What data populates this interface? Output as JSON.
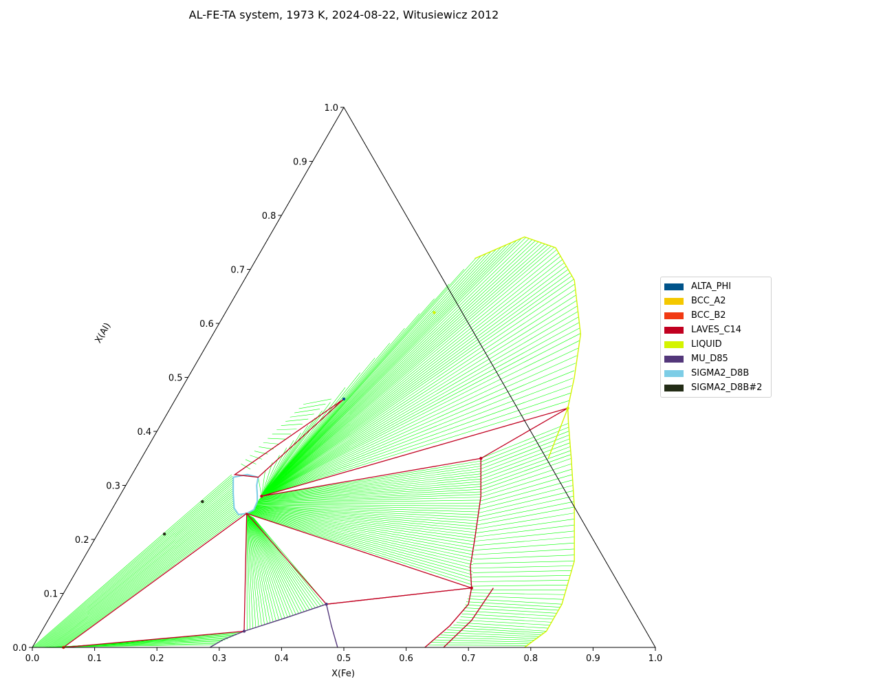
{
  "chart_data": {
    "type": "ternary",
    "title": "AL-FE-TA system, 1973 K, 2024-08-22, Witusiewicz 2012",
    "xlabel": "X(Fe)",
    "ylabel": "X(Al)",
    "xlim": [
      0,
      1
    ],
    "ylim": [
      0,
      1
    ],
    "x_ticks": [
      "0.0",
      "0.1",
      "0.2",
      "0.3",
      "0.4",
      "0.5",
      "0.6",
      "0.7",
      "0.8",
      "0.9",
      "1.0"
    ],
    "y_ticks": [
      "0.0",
      "0.1",
      "0.2",
      "0.3",
      "0.4",
      "0.5",
      "0.6",
      "0.7",
      "0.8",
      "0.9",
      "1.0"
    ],
    "tieline_color": "#00ff00",
    "legend": [
      {
        "name": "ALTA_PHI",
        "color": "#00538a"
      },
      {
        "name": "BCC_A2",
        "color": "#f4c800"
      },
      {
        "name": "BCC_B2",
        "color": "#f13a13"
      },
      {
        "name": "LAVES_C14",
        "color": "#c10020"
      },
      {
        "name": "LIQUID",
        "color": "#d4f400"
      },
      {
        "name": "MU_D85",
        "color": "#53377a"
      },
      {
        "name": "SIGMA2_D8B",
        "color": "#7dcde6"
      },
      {
        "name": "SIGMA2_D8B#2",
        "color": "#232c16"
      }
    ],
    "phase_boundaries": [
      {
        "phase": "LIQUID",
        "color": "#d4f400",
        "points": [
          [
            0.35,
            0.72
          ],
          [
            0.41,
            0.76
          ],
          [
            0.47,
            0.74
          ],
          [
            0.53,
            0.68
          ],
          [
            0.59,
            0.58
          ],
          [
            0.62,
            0.5
          ],
          [
            0.638,
            0.443
          ],
          [
            0.653,
            0.415
          ],
          [
            0.69,
            0.35
          ],
          [
            0.74,
            0.26
          ],
          [
            0.79,
            0.16
          ],
          [
            0.81,
            0.08
          ],
          [
            0.81,
            0.03
          ],
          [
            0.79,
            0.0
          ]
        ]
      },
      {
        "phase": "LIQUID",
        "color": "#d4f400",
        "points": [
          [
            0.638,
            0.443
          ],
          [
            0.645,
            0.4
          ],
          [
            0.653,
            0.35
          ]
        ]
      },
      {
        "phase": "LAVES_C14",
        "color": "#c10020",
        "points": [
          [
            0.545,
            0.35
          ],
          [
            0.58,
            0.28
          ],
          [
            0.61,
            0.2
          ],
          [
            0.628,
            0.15
          ],
          [
            0.65,
            0.11
          ]
        ]
      },
      {
        "phase": "LAVES_C14",
        "color": "#c10020",
        "points": [
          [
            0.65,
            0.11
          ],
          [
            0.66,
            0.08
          ],
          [
            0.65,
            0.04
          ],
          [
            0.63,
            0.0
          ]
        ]
      },
      {
        "phase": "LAVES_C14",
        "color": "#c10020",
        "points": [
          [
            0.685,
            0.11
          ],
          [
            0.68,
            0.05
          ],
          [
            0.66,
            0.0
          ]
        ]
      },
      {
        "phase": "MU_D85",
        "color": "#53377a",
        "points": [
          [
            0.285,
            0.0
          ],
          [
            0.3,
            0.015
          ],
          [
            0.325,
            0.03
          ],
          [
            0.38,
            0.055
          ],
          [
            0.432,
            0.08
          ],
          [
            0.46,
            0.04
          ],
          [
            0.49,
            0.0
          ]
        ]
      },
      {
        "phase": "SIGMA2_D8B",
        "color": "#7dcde6",
        "points": [
          [
            0.165,
            0.315
          ],
          [
            0.185,
            0.32
          ],
          [
            0.205,
            0.315
          ],
          [
            0.21,
            0.3
          ],
          [
            0.22,
            0.282
          ],
          [
            0.226,
            0.27
          ],
          [
            0.228,
            0.255
          ],
          [
            0.22,
            0.248
          ],
          [
            0.208,
            0.246
          ],
          [
            0.195,
            0.258
          ],
          [
            0.18,
            0.285
          ],
          [
            0.165,
            0.315
          ]
        ]
      }
    ],
    "three_phase_triangles": [
      {
        "color": "#c10020",
        "points": [
          [
            0.228,
            0.28
          ],
          [
            0.545,
            0.35
          ],
          [
            0.638,
            0.443
          ]
        ]
      },
      {
        "color": "#c10020",
        "points": [
          [
            0.22,
            0.248
          ],
          [
            0.65,
            0.11
          ],
          [
            0.432,
            0.08
          ]
        ]
      },
      {
        "color": "#c10020",
        "points": [
          [
            0.22,
            0.248
          ],
          [
            0.325,
            0.03
          ],
          [
            0.05,
            0.0
          ]
        ]
      },
      {
        "color": "#c10020",
        "points": [
          [
            0.165,
            0.32
          ],
          [
            0.205,
            0.315
          ],
          [
            0.27,
            0.46
          ]
        ]
      },
      {
        "color": "#c10020",
        "points": [
          [
            0.432,
            0.08
          ],
          [
            0.65,
            0.11
          ]
        ]
      }
    ],
    "tie_line_fans": [
      {
        "from": [
          [
            0.228,
            0.28
          ]
        ],
        "to_curve": [
          [
            0.205,
            0.315
          ],
          [
            0.25,
            0.45
          ],
          [
            0.35,
            0.72
          ],
          [
            0.41,
            0.76
          ],
          [
            0.47,
            0.74
          ],
          [
            0.53,
            0.68
          ],
          [
            0.59,
            0.58
          ],
          [
            0.638,
            0.443
          ]
        ],
        "count": 70
      },
      {
        "from_curve": [
          [
            0.228,
            0.28
          ],
          [
            0.225,
            0.262
          ],
          [
            0.22,
            0.248
          ]
        ],
        "to_curve": [
          [
            0.545,
            0.35
          ],
          [
            0.58,
            0.28
          ],
          [
            0.61,
            0.2
          ],
          [
            0.65,
            0.11
          ]
        ],
        "count": 45
      },
      {
        "from_curve": [
          [
            0.22,
            0.248
          ],
          [
            0.235,
            0.24
          ]
        ],
        "to_curve": [
          [
            0.325,
            0.03
          ],
          [
            0.38,
            0.055
          ],
          [
            0.432,
            0.08
          ]
        ],
        "count": 30
      },
      {
        "from_curve": [
          [
            0.545,
            0.35
          ],
          [
            0.58,
            0.28
          ],
          [
            0.61,
            0.2
          ],
          [
            0.65,
            0.11
          ],
          [
            0.66,
            0.05
          ],
          [
            0.63,
            0.0
          ]
        ],
        "to_curve": [
          [
            0.653,
            0.415
          ],
          [
            0.69,
            0.35
          ],
          [
            0.74,
            0.26
          ],
          [
            0.79,
            0.16
          ],
          [
            0.81,
            0.08
          ],
          [
            0.81,
            0.03
          ],
          [
            0.79,
            0.0
          ]
        ],
        "count": 55
      },
      {
        "from_curve": [
          [
            0.05,
            0.0
          ],
          [
            0.0,
            0.0
          ]
        ],
        "to_curve": [
          [
            0.325,
            0.03
          ],
          [
            0.29,
            0.005
          ]
        ],
        "count": 12
      },
      {
        "from_curve": [
          [
            0.0,
            0.0
          ],
          [
            0.05,
            0.0
          ]
        ],
        "to_curve": [
          [
            0.16,
            0.32
          ],
          [
            0.22,
            0.248
          ]
        ],
        "count": 25
      },
      {
        "from_curve": [
          [
            0.165,
            0.34
          ],
          [
            0.21,
            0.45
          ]
        ],
        "to_curve": [
          [
            0.185,
            0.33
          ],
          [
            0.25,
            0.46
          ]
        ],
        "count": 15
      }
    ],
    "points": [
      {
        "x": 0.27,
        "y": 0.46,
        "color": "#00538a"
      },
      {
        "x": 0.545,
        "y": 0.35,
        "color": "#c10020"
      },
      {
        "x": 0.65,
        "y": 0.11,
        "color": "#c10020"
      },
      {
        "x": 0.432,
        "y": 0.08,
        "color": "#53377a"
      },
      {
        "x": 0.325,
        "y": 0.03,
        "color": "#53377a"
      },
      {
        "x": 0.05,
        "y": 0.0,
        "color": "#f13a13"
      },
      {
        "x": 0.228,
        "y": 0.28,
        "color": "#c10020"
      },
      {
        "x": 0.638,
        "y": 0.443,
        "color": "#d4f400"
      },
      {
        "x": 0.138,
        "y": 0.27,
        "color": "#232c16"
      },
      {
        "x": 0.107,
        "y": 0.21,
        "color": "#232c16"
      },
      {
        "x": 0.335,
        "y": 0.62,
        "color": "#d4f400"
      }
    ]
  }
}
